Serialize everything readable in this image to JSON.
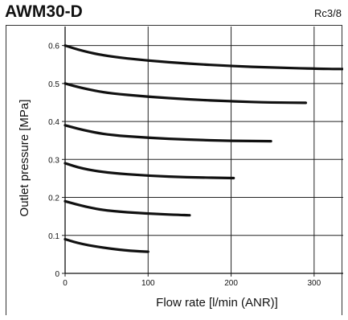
{
  "chart_data": {
    "type": "line",
    "title": "AWM30-D",
    "subtitle": "Rc3/8",
    "xlabel": "Flow rate [l/min (ANR)]",
    "ylabel": "Outlet pressure [MPa]",
    "xlim": [
      0,
      335
    ],
    "ylim": [
      0,
      0.65
    ],
    "x_ticks": [
      "0",
      "100",
      "200",
      "300"
    ],
    "x_tick_values": [
      0,
      100,
      200,
      300
    ],
    "y_ticks": [
      "0",
      "0.1",
      "0.2",
      "0.3",
      "0.4",
      "0.5",
      "0.6"
    ],
    "y_tick_values": [
      0,
      0.1,
      0.2,
      0.3,
      0.4,
      0.5,
      0.6
    ],
    "grid": true,
    "line_color": "#111111",
    "grid_color": "#222222",
    "series": [
      {
        "x": [
          0,
          20,
          50,
          100,
          150,
          200,
          250,
          300,
          335
        ],
        "y": [
          0.6,
          0.586,
          0.572,
          0.56,
          0.552,
          0.546,
          0.542,
          0.539,
          0.538
        ]
      },
      {
        "x": [
          0,
          20,
          50,
          100,
          150,
          200,
          250,
          290
        ],
        "y": [
          0.5,
          0.488,
          0.475,
          0.465,
          0.458,
          0.453,
          0.45,
          0.449
        ]
      },
      {
        "x": [
          0,
          20,
          50,
          100,
          150,
          200,
          248
        ],
        "y": [
          0.39,
          0.378,
          0.365,
          0.357,
          0.352,
          0.349,
          0.348
        ]
      },
      {
        "x": [
          0,
          20,
          50,
          100,
          150,
          203
        ],
        "y": [
          0.29,
          0.276,
          0.265,
          0.257,
          0.253,
          0.251
        ]
      },
      {
        "x": [
          0,
          25,
          50,
          100,
          150
        ],
        "y": [
          0.19,
          0.175,
          0.165,
          0.157,
          0.153
        ]
      },
      {
        "x": [
          0,
          20,
          50,
          80,
          100
        ],
        "y": [
          0.09,
          0.077,
          0.066,
          0.059,
          0.057
        ]
      }
    ]
  }
}
